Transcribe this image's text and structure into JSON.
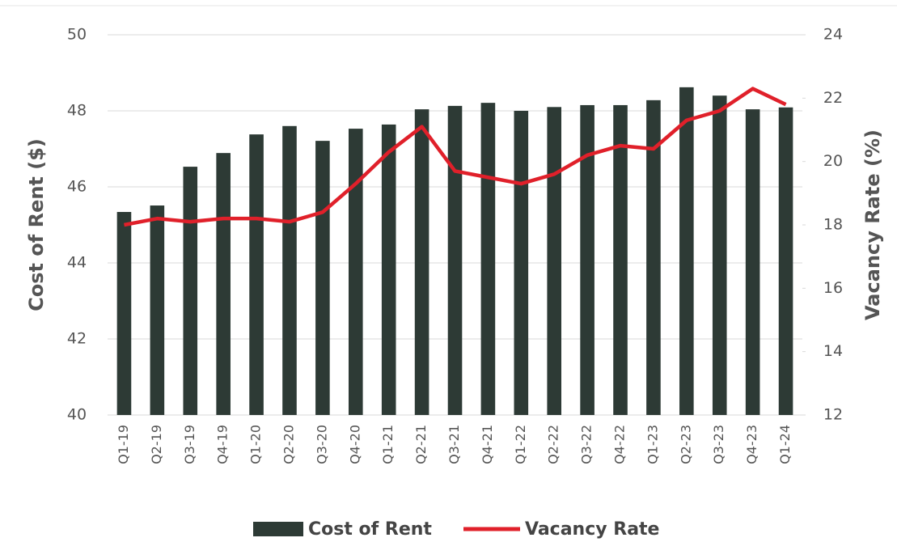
{
  "chart_data": {
    "type": "bar_line",
    "categories": [
      "Q1-19",
      "Q2-19",
      "Q3-19",
      "Q4-19",
      "Q1-20",
      "Q2-20",
      "Q3-20",
      "Q4-20",
      "Q1-21",
      "Q2-21",
      "Q3-21",
      "Q4-21",
      "Q1-22",
      "Q2-22",
      "Q3-22",
      "Q4-22",
      "Q1-23",
      "Q2-23",
      "Q3-23",
      "Q4-23",
      "Q1-24"
    ],
    "series": [
      {
        "name": "Cost of Rent",
        "type": "bar",
        "axis": "y",
        "color": "#2d3a35",
        "values": [
          45.34,
          45.51,
          46.53,
          46.89,
          47.38,
          47.6,
          47.21,
          47.53,
          47.64,
          48.04,
          48.13,
          48.21,
          48.0,
          48.1,
          48.15,
          48.15,
          48.28,
          48.62,
          48.4,
          48.04,
          48.09
        ]
      },
      {
        "name": "Vacancy Rate",
        "type": "line",
        "axis": "y2",
        "color": "#e0202a",
        "values": [
          18.0,
          18.2,
          18.1,
          18.2,
          18.2,
          18.1,
          18.4,
          19.3,
          20.3,
          21.1,
          19.7,
          19.5,
          19.3,
          19.6,
          20.2,
          20.5,
          20.4,
          21.3,
          21.6,
          22.3,
          21.8
        ]
      }
    ],
    "y_label": "Cost of Rent ($)",
    "y2_label": "Vacancy Rate (%)",
    "ylim": [
      40,
      50
    ],
    "yticks": [
      40,
      42,
      44,
      46,
      48,
      50
    ],
    "y2lim": [
      12,
      24
    ],
    "y2ticks": [
      12,
      14,
      16,
      18,
      20,
      22,
      24
    ],
    "grid": true,
    "legend": "bottom"
  }
}
